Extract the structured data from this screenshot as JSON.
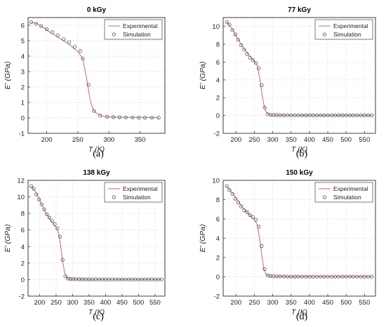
{
  "chart_data": [
    {
      "type": "line",
      "title": "0 kGy",
      "xlabel": "T (K)",
      "ylabel": "E' (GPa)",
      "panel_label": "(a)",
      "xlim": [
        170,
        390
      ],
      "ylim": [
        -1,
        6.5
      ],
      "xticks": [
        200,
        250,
        300,
        350
      ],
      "yticks": [
        -1,
        0,
        1,
        2,
        3,
        4,
        5,
        6
      ],
      "grid": true,
      "legend_position": "top-right",
      "series": [
        {
          "name": "Experimental",
          "style": "line",
          "color": "#c8697a",
          "x": [
            175,
            185,
            195,
            205,
            215,
            225,
            235,
            245,
            252,
            258,
            262,
            266,
            270,
            275,
            280,
            290,
            300,
            320,
            350,
            380
          ],
          "y": [
            6.2,
            6.1,
            5.85,
            5.55,
            5.3,
            5.05,
            4.8,
            4.45,
            4.2,
            3.8,
            3.0,
            2.1,
            1.1,
            0.5,
            0.3,
            0.1,
            0.06,
            0.04,
            0.03,
            0.02
          ]
        },
        {
          "name": "Simulation",
          "style": "marker",
          "color": "#555555",
          "x": [
            175,
            183,
            191,
            200,
            209,
            218,
            227,
            236,
            245,
            254,
            258,
            267,
            276,
            286,
            297,
            307,
            317,
            327,
            338,
            348,
            358,
            369,
            380
          ],
          "y": [
            6.2,
            6.1,
            5.95,
            5.75,
            5.55,
            5.35,
            5.1,
            4.9,
            4.6,
            4.35,
            3.85,
            2.15,
            0.45,
            0.15,
            0.07,
            0.05,
            0.04,
            0.03,
            0.03,
            0.02,
            0.02,
            0.02,
            0.02
          ]
        }
      ]
    },
    {
      "type": "line",
      "title": "77 kGy",
      "xlabel": "T (K)",
      "ylabel": "E' (GPa)",
      "panel_label": "(b)",
      "xlim": [
        165,
        580
      ],
      "ylim": [
        -2,
        11
      ],
      "xticks": [
        200,
        250,
        300,
        350,
        400,
        450,
        500,
        550
      ],
      "yticks": [
        -2,
        0,
        2,
        4,
        6,
        8,
        10
      ],
      "grid": true,
      "legend_position": "top-right",
      "series": [
        {
          "name": "Experimental",
          "style": "line",
          "color": "#c8697a",
          "x": [
            175,
            190,
            205,
            220,
            235,
            250,
            258,
            264,
            270,
            276,
            282,
            290,
            300,
            350,
            400,
            450,
            500,
            570
          ],
          "y": [
            10.5,
            9.7,
            8.6,
            7.6,
            6.8,
            6.1,
            5.6,
            4.3,
            2.6,
            1.2,
            0.4,
            0.12,
            0.05,
            0.03,
            0.02,
            0.02,
            0.02,
            0.02
          ]
        },
        {
          "name": "Simulation",
          "style": "marker",
          "color": "#555555",
          "x": [
            175,
            182,
            190,
            198,
            206,
            214,
            222,
            230,
            238,
            246,
            254,
            262,
            270,
            278,
            286,
            294,
            302,
            310,
            320,
            330,
            340,
            350,
            360,
            370,
            380,
            390,
            400,
            410,
            420,
            430,
            440,
            450,
            460,
            470,
            480,
            490,
            500,
            510,
            520,
            530,
            540,
            550,
            560,
            570
          ],
          "y": [
            10.5,
            10.2,
            9.6,
            9.1,
            8.5,
            7.9,
            7.4,
            6.9,
            6.5,
            6.2,
            5.9,
            5.3,
            3.4,
            0.9,
            0.15,
            0.08,
            0.06,
            0.05,
            0.04,
            0.04,
            0.03,
            0.03,
            0.03,
            0.03,
            0.02,
            0.02,
            0.02,
            0.02,
            0.02,
            0.02,
            0.02,
            0.02,
            0.02,
            0.02,
            0.02,
            0.02,
            0.02,
            0.02,
            0.02,
            0.02,
            0.02,
            0.02,
            0.02,
            0.02
          ]
        }
      ]
    },
    {
      "type": "line",
      "title": "138 kGy",
      "xlabel": "T (K)",
      "ylabel": "E' (GPa)",
      "panel_label": "(c)",
      "xlim": [
        165,
        580
      ],
      "ylim": [
        -2,
        12
      ],
      "xticks": [
        200,
        250,
        300,
        350,
        400,
        450,
        500,
        550
      ],
      "yticks": [
        -2,
        0,
        2,
        4,
        6,
        8,
        10,
        12
      ],
      "grid": true,
      "legend_position": "top-right",
      "series": [
        {
          "name": "Experimental",
          "style": "line",
          "color": "#c8697a",
          "x": [
            175,
            190,
            205,
            220,
            235,
            250,
            258,
            264,
            270,
            276,
            282,
            290,
            300,
            350,
            400,
            450,
            500,
            570
          ],
          "y": [
            11.3,
            10.5,
            9.2,
            8.0,
            7.1,
            6.3,
            5.6,
            4.0,
            2.2,
            0.8,
            0.25,
            0.08,
            0.05,
            0.03,
            0.02,
            0.02,
            0.02,
            0.02
          ]
        },
        {
          "name": "Simulation",
          "style": "marker",
          "color": "#555555",
          "x": [
            175,
            182,
            190,
            198,
            206,
            214,
            222,
            230,
            238,
            246,
            254,
            262,
            270,
            278,
            286,
            294,
            302,
            310,
            320,
            330,
            340,
            350,
            360,
            370,
            380,
            390,
            400,
            410,
            420,
            430,
            440,
            450,
            460,
            470,
            480,
            490,
            500,
            510,
            520,
            530,
            540,
            550,
            560,
            570
          ],
          "y": [
            11.3,
            11.0,
            10.3,
            9.7,
            9.1,
            8.5,
            7.9,
            7.5,
            7.1,
            6.7,
            6.2,
            5.2,
            2.4,
            0.4,
            0.12,
            0.08,
            0.06,
            0.05,
            0.04,
            0.04,
            0.03,
            0.03,
            0.03,
            0.03,
            0.02,
            0.02,
            0.02,
            0.02,
            0.02,
            0.02,
            0.02,
            0.02,
            0.02,
            0.02,
            0.02,
            0.02,
            0.02,
            0.02,
            0.02,
            0.02,
            0.02,
            0.02,
            0.02,
            0.02
          ]
        }
      ]
    },
    {
      "type": "line",
      "title": "150 kGy",
      "xlabel": "T (K)",
      "ylabel": "E' (GPa)",
      "panel_label": "(d)",
      "xlim": [
        165,
        580
      ],
      "ylim": [
        -2,
        10
      ],
      "xticks": [
        200,
        250,
        300,
        350,
        400,
        450,
        500,
        550
      ],
      "yticks": [
        -2,
        0,
        2,
        4,
        6,
        8,
        10
      ],
      "grid": true,
      "legend_position": "top-right",
      "series": [
        {
          "name": "Experimental",
          "style": "line",
          "color": "#c8697a",
          "x": [
            175,
            190,
            205,
            220,
            235,
            250,
            258,
            264,
            270,
            276,
            282,
            290,
            300,
            350,
            400,
            450,
            500,
            570
          ],
          "y": [
            9.4,
            8.7,
            7.9,
            7.1,
            6.5,
            5.9,
            5.4,
            4.0,
            2.3,
            0.8,
            0.25,
            0.08,
            0.05,
            0.03,
            0.02,
            0.02,
            0.02,
            0.02
          ]
        },
        {
          "name": "Simulation",
          "style": "marker",
          "color": "#555555",
          "x": [
            175,
            182,
            190,
            198,
            206,
            214,
            222,
            230,
            238,
            246,
            254,
            262,
            270,
            278,
            286,
            294,
            302,
            310,
            320,
            330,
            340,
            350,
            360,
            370,
            380,
            390,
            400,
            410,
            420,
            430,
            440,
            450,
            460,
            470,
            480,
            490,
            500,
            510,
            520,
            530,
            540,
            550,
            560,
            570
          ],
          "y": [
            9.4,
            9.0,
            8.6,
            8.1,
            7.7,
            7.3,
            6.9,
            6.7,
            6.4,
            6.2,
            5.9,
            5.2,
            3.2,
            0.8,
            0.15,
            0.08,
            0.06,
            0.05,
            0.04,
            0.04,
            0.03,
            0.03,
            0.03,
            0.03,
            0.02,
            0.02,
            0.02,
            0.02,
            0.02,
            0.02,
            0.02,
            0.02,
            0.02,
            0.02,
            0.02,
            0.02,
            0.02,
            0.02,
            0.02,
            0.02,
            0.02,
            0.02,
            0.02,
            0.02
          ]
        }
      ]
    }
  ]
}
